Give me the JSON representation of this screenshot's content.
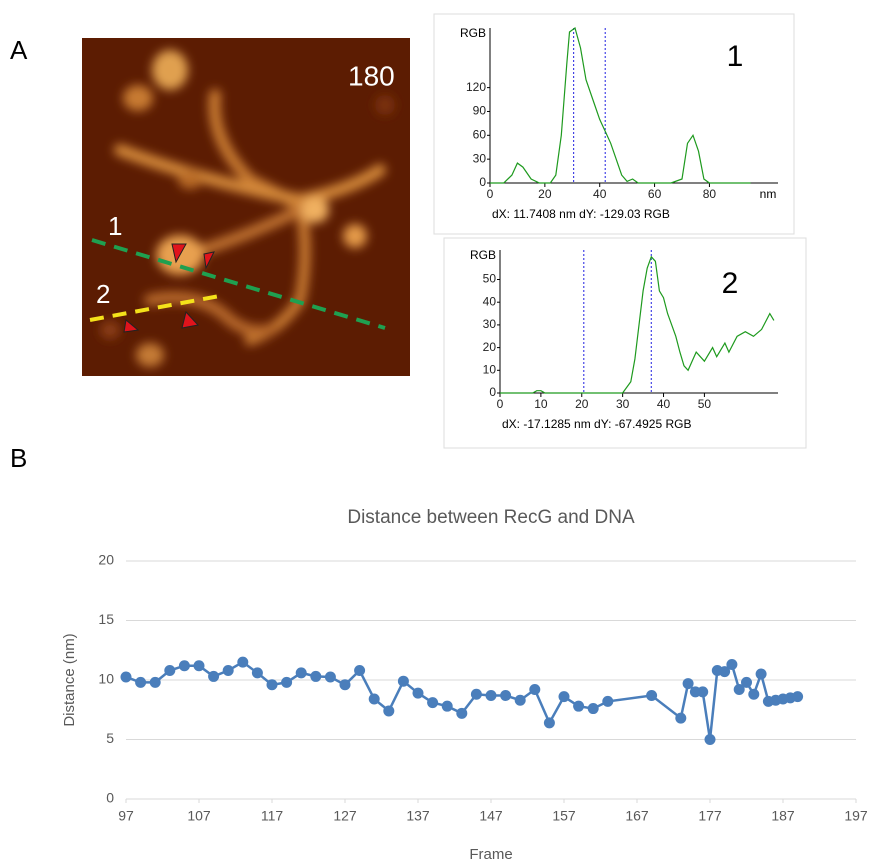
{
  "panel_labels": [
    "A",
    "B"
  ],
  "image": {
    "frame_label": "180",
    "line_labels": [
      "1",
      "2"
    ]
  },
  "chart_data": [
    {
      "type": "line",
      "annotation": "1",
      "xlabel": "nm",
      "ylabel": "RGB",
      "readout": "dX: 11.7408 nm  dY: -129.03 RGB",
      "color": "#1e9a1e",
      "grid": false,
      "xlim": [
        0,
        105
      ],
      "xticks": [
        0,
        20,
        40,
        60,
        80
      ],
      "ylim": [
        0,
        195
      ],
      "yticks": [
        0,
        30,
        60,
        90,
        120
      ],
      "cursors": [
        30.5,
        42
      ],
      "cursor_color": "#2020e0",
      "x": [
        0,
        5,
        8,
        10,
        12,
        15,
        18,
        22,
        24,
        26,
        28,
        29,
        31,
        33,
        35,
        38,
        40,
        42,
        44,
        46,
        48,
        50,
        52,
        54,
        58,
        66,
        70,
        72,
        74,
        76,
        78,
        80,
        95
      ],
      "values": [
        0,
        0,
        10,
        25,
        20,
        5,
        0,
        0,
        10,
        60,
        150,
        190,
        195,
        170,
        130,
        100,
        80,
        65,
        50,
        30,
        10,
        2,
        5,
        0,
        0,
        0,
        5,
        50,
        60,
        40,
        5,
        0,
        0
      ]
    },
    {
      "type": "line",
      "annotation": "2",
      "xlabel": "",
      "ylabel": "RGB",
      "readout": "dX: -17.1285 nm dY: -67.4925 RGB",
      "color": "#1e9a1e",
      "grid": false,
      "xlim": [
        0,
        68
      ],
      "xticks": [
        0,
        10,
        20,
        30,
        40,
        50
      ],
      "ylim": [
        0,
        63
      ],
      "yticks": [
        0,
        10,
        20,
        30,
        40,
        50
      ],
      "cursors": [
        20.5,
        37
      ],
      "cursor_color": "#2020e0",
      "x": [
        0,
        8,
        9,
        10,
        11,
        30,
        32,
        33,
        34,
        35,
        36,
        37,
        38,
        39,
        40,
        41,
        42,
        43,
        44,
        45,
        46,
        47,
        48,
        50,
        52,
        53,
        55,
        56,
        58,
        60,
        62,
        64,
        66,
        67
      ],
      "values": [
        0,
        0,
        1,
        1,
        0,
        0,
        5,
        15,
        30,
        45,
        55,
        60,
        58,
        45,
        42,
        35,
        30,
        25,
        18,
        12,
        10,
        14,
        18,
        14,
        20,
        16,
        22,
        18,
        25,
        27,
        25,
        28,
        35,
        32
      ]
    },
    {
      "type": "line",
      "title": "Distance between RecG and DNA",
      "xlabel": "Frame",
      "ylabel": "Distance (nm)",
      "color": "#4a7ebb",
      "markers": true,
      "grid": true,
      "xlim": [
        97,
        197
      ],
      "xticks": [
        97,
        107,
        117,
        127,
        137,
        147,
        157,
        167,
        177,
        187,
        197
      ],
      "ylim": [
        0,
        20
      ],
      "yticks": [
        0,
        5,
        10,
        15,
        20
      ],
      "x": [
        97,
        99,
        101,
        103,
        105,
        107,
        109,
        111,
        113,
        115,
        117,
        119,
        121,
        123,
        125,
        127,
        129,
        131,
        133,
        135,
        137,
        139,
        141,
        143,
        145,
        147,
        149,
        151,
        153,
        155,
        157,
        159,
        161,
        163,
        169,
        173,
        174,
        175,
        176,
        177,
        178,
        179,
        180,
        181,
        182,
        183,
        184,
        185,
        186,
        187,
        188,
        189
      ],
      "values": [
        10.25,
        9.8,
        9.8,
        10.8,
        11.2,
        11.2,
        10.3,
        10.8,
        11.5,
        10.6,
        9.6,
        9.8,
        10.6,
        10.3,
        10.25,
        9.6,
        10.8,
        8.4,
        7.4,
        9.9,
        8.9,
        8.1,
        7.8,
        7.2,
        8.8,
        8.7,
        8.7,
        8.3,
        9.2,
        6.4,
        8.6,
        7.8,
        7.6,
        8.2,
        8.7,
        6.8,
        9.7,
        9.0,
        9.0,
        5.0,
        10.8,
        10.7,
        11.3,
        9.2,
        9.8,
        8.8,
        10.5,
        8.2,
        8.3,
        8.4,
        8.5,
        8.6
      ]
    }
  ]
}
